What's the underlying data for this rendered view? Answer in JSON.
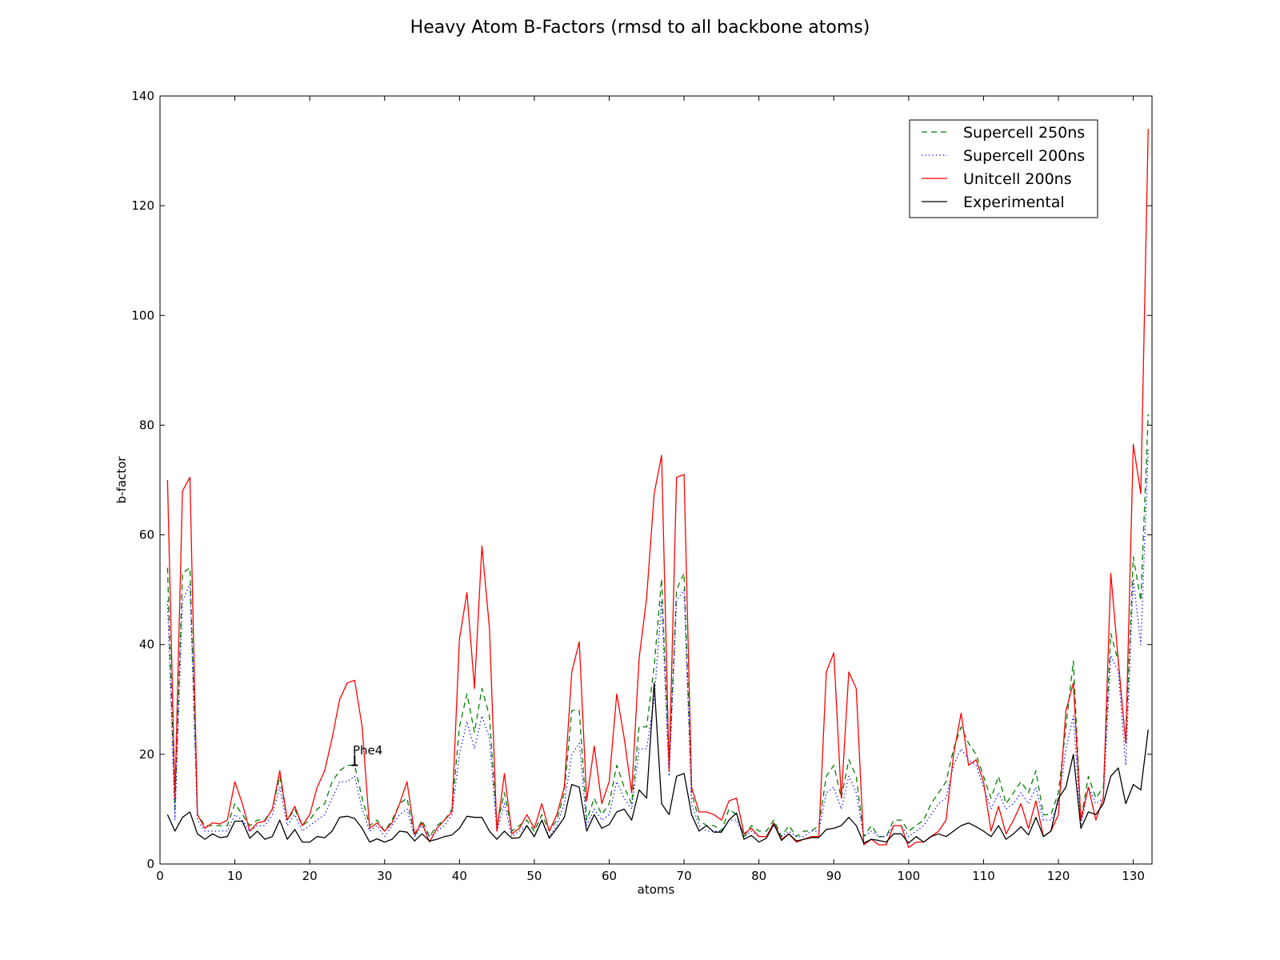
{
  "chart_data": {
    "type": "line",
    "title": "Heavy Atom B-Factors (rmsd to all backbone atoms)",
    "xlabel": "atoms",
    "ylabel": "b-factor",
    "xlim": [
      0,
      132.5
    ],
    "ylim": [
      0,
      140
    ],
    "xticks": [
      0,
      10,
      20,
      30,
      40,
      50,
      60,
      70,
      80,
      90,
      100,
      110,
      120,
      130
    ],
    "yticks": [
      0,
      20,
      40,
      60,
      80,
      100,
      120,
      140
    ],
    "grid": false,
    "legend_position": "upper right",
    "annotation": {
      "text": "Phe4",
      "x": 26,
      "y": 18
    },
    "series": [
      {
        "name": "Supercell 250ns",
        "color": "#007f00",
        "style": "dashed",
        "x": [
          1,
          2,
          3,
          4,
          5,
          6,
          7,
          8,
          9,
          10,
          11,
          12,
          13,
          14,
          15,
          16,
          17,
          18,
          19,
          20,
          21,
          22,
          23,
          24,
          25,
          26,
          27,
          28,
          29,
          30,
          31,
          32,
          33,
          34,
          35,
          36,
          37,
          38,
          39,
          40,
          41,
          42,
          43,
          44,
          45,
          46,
          47,
          48,
          49,
          50,
          51,
          52,
          53,
          54,
          55,
          56,
          57,
          58,
          59,
          60,
          61,
          62,
          63,
          64,
          65,
          66,
          67,
          68,
          69,
          70,
          71,
          72,
          73,
          74,
          75,
          76,
          77,
          78,
          79,
          80,
          81,
          82,
          83,
          84,
          85,
          86,
          87,
          88,
          89,
          90,
          91,
          92,
          93,
          94,
          95,
          96,
          97,
          98,
          99,
          100,
          101,
          102,
          103,
          104,
          105,
          106,
          107,
          108,
          109,
          110,
          111,
          112,
          113,
          114,
          115,
          116,
          117,
          118,
          119,
          120,
          121,
          122,
          123,
          124,
          125,
          126,
          127,
          128,
          129,
          130,
          131,
          132
        ],
        "values": [
          54,
          10,
          53,
          54,
          9,
          7,
          7,
          7,
          7,
          11,
          9,
          7,
          8,
          8,
          10,
          16,
          8,
          10,
          7,
          8,
          10,
          11,
          15,
          17,
          18,
          18,
          12,
          7,
          8,
          6,
          8,
          11,
          12,
          5,
          8,
          5,
          7,
          8,
          10,
          25,
          31,
          24,
          32,
          27,
          7,
          13,
          6,
          7,
          8,
          6,
          9,
          6,
          8,
          13,
          28,
          28,
          8,
          12,
          9,
          11,
          18,
          14,
          11,
          25,
          25,
          36,
          52,
          17,
          50,
          53,
          13,
          8,
          7,
          7,
          6,
          10,
          9,
          5,
          7,
          6,
          6,
          8,
          5,
          7,
          5,
          6,
          6,
          7,
          16,
          18,
          12,
          19,
          16,
          5,
          7,
          5,
          5,
          8,
          8,
          6,
          7,
          8,
          11,
          13,
          15,
          21,
          25,
          22,
          20,
          16,
          12,
          16,
          11,
          13,
          15,
          13,
          17,
          9,
          9,
          13,
          25,
          37,
          8,
          16,
          12,
          14,
          42,
          37,
          22,
          56,
          48,
          82
        ]
      },
      {
        "name": "Supercell 200ns",
        "color": "#0000ff",
        "style": "dotted",
        "x": [
          1,
          2,
          3,
          4,
          5,
          6,
          7,
          8,
          9,
          10,
          11,
          12,
          13,
          14,
          15,
          16,
          17,
          18,
          19,
          20,
          21,
          22,
          23,
          24,
          25,
          26,
          27,
          28,
          29,
          30,
          31,
          32,
          33,
          34,
          35,
          36,
          37,
          38,
          39,
          40,
          41,
          42,
          43,
          44,
          45,
          46,
          47,
          48,
          49,
          50,
          51,
          52,
          53,
          54,
          55,
          56,
          57,
          58,
          59,
          60,
          61,
          62,
          63,
          64,
          65,
          66,
          67,
          68,
          69,
          70,
          71,
          72,
          73,
          74,
          75,
          76,
          77,
          78,
          79,
          80,
          81,
          82,
          83,
          84,
          85,
          86,
          87,
          88,
          89,
          90,
          91,
          92,
          93,
          94,
          95,
          96,
          97,
          98,
          99,
          100,
          101,
          102,
          103,
          104,
          105,
          106,
          107,
          108,
          109,
          110,
          111,
          112,
          113,
          114,
          115,
          116,
          117,
          118,
          119,
          120,
          121,
          122,
          123,
          124,
          125,
          126,
          127,
          128,
          129,
          130,
          131,
          132
        ],
        "values": [
          48,
          8,
          48,
          51,
          8,
          6,
          6,
          6,
          6,
          9,
          8,
          6,
          7,
          7,
          9,
          14,
          7,
          9,
          6,
          7,
          8,
          9,
          12,
          15,
          15,
          16,
          10,
          6,
          7,
          5,
          7,
          9,
          10,
          5,
          7,
          5,
          6,
          7,
          9,
          20,
          26,
          21,
          27,
          23,
          6,
          11,
          5,
          6,
          7,
          5,
          8,
          5,
          7,
          11,
          20,
          22,
          7,
          10,
          8,
          9,
          15,
          12,
          10,
          21,
          21,
          30,
          48,
          16,
          48,
          50,
          11,
          7,
          6,
          6,
          6,
          8,
          8,
          5,
          6,
          5,
          5,
          7,
          5,
          6,
          5,
          5,
          6,
          6,
          13,
          14,
          10,
          16,
          13,
          5,
          6,
          5,
          5,
          7,
          7,
          5,
          6,
          7,
          9,
          11,
          12,
          18,
          21,
          19,
          18,
          14,
          10,
          13,
          10,
          11,
          13,
          11,
          14,
          8,
          8,
          11,
          21,
          27,
          7,
          14,
          11,
          12,
          38,
          35,
          18,
          52,
          40,
          76
        ]
      },
      {
        "name": "Unitcell 200ns",
        "color": "#ff0000",
        "style": "solid",
        "x": [
          1,
          2,
          3,
          4,
          5,
          6,
          7,
          8,
          9,
          10,
          11,
          12,
          13,
          14,
          15,
          16,
          17,
          18,
          19,
          20,
          21,
          22,
          23,
          24,
          25,
          26,
          27,
          28,
          29,
          30,
          31,
          32,
          33,
          34,
          35,
          36,
          37,
          38,
          39,
          40,
          41,
          42,
          43,
          44,
          45,
          46,
          47,
          48,
          49,
          50,
          51,
          52,
          53,
          54,
          55,
          56,
          57,
          58,
          59,
          60,
          61,
          62,
          63,
          64,
          65,
          66,
          67,
          68,
          69,
          70,
          71,
          72,
          73,
          74,
          75,
          76,
          77,
          78,
          79,
          80,
          81,
          82,
          83,
          84,
          85,
          86,
          87,
          88,
          89,
          90,
          91,
          92,
          93,
          94,
          95,
          96,
          97,
          98,
          99,
          100,
          101,
          102,
          103,
          104,
          105,
          106,
          107,
          108,
          109,
          110,
          111,
          112,
          113,
          114,
          115,
          116,
          117,
          118,
          119,
          120,
          121,
          122,
          123,
          124,
          125,
          126,
          127,
          128,
          129,
          130,
          131,
          132
        ],
        "values": [
          70,
          12,
          68,
          70.5,
          9,
          6.5,
          7.5,
          7.3,
          8,
          15,
          11,
          6,
          7.5,
          7.8,
          10,
          17,
          8,
          10.5,
          7,
          9,
          14,
          17,
          23,
          30,
          33,
          33.5,
          25,
          6.5,
          7.5,
          6,
          7.5,
          11,
          15,
          5.5,
          7.5,
          4,
          6.5,
          8,
          9.5,
          41,
          49.5,
          32,
          58,
          43,
          6,
          16.5,
          5.5,
          6.5,
          9,
          6.5,
          11,
          6,
          9,
          14,
          35,
          40.5,
          11.5,
          21.5,
          11,
          15,
          31,
          23,
          13,
          37.5,
          48.5,
          67.5,
          74.5,
          17,
          70.5,
          71,
          14,
          9.5,
          9.5,
          9,
          8,
          11.5,
          12,
          5.5,
          6.5,
          5,
          5,
          7.5,
          4.5,
          5.5,
          4,
          4.5,
          5,
          5,
          35,
          38.5,
          12,
          35,
          32,
          3.5,
          4.5,
          3.5,
          3.5,
          7,
          7,
          3,
          4,
          4,
          5,
          6,
          8,
          20,
          27.5,
          18,
          19,
          15,
          6,
          10.5,
          5.5,
          8,
          11,
          6.5,
          11.5,
          5,
          6,
          9,
          28,
          33,
          8,
          14,
          8,
          12,
          53,
          37,
          22,
          76.5,
          67.5,
          134
        ]
      },
      {
        "name": "Experimental",
        "color": "#000000",
        "style": "solid",
        "x": [
          1,
          2,
          3,
          4,
          5,
          6,
          7,
          8,
          9,
          10,
          11,
          12,
          13,
          14,
          15,
          16,
          17,
          18,
          19,
          20,
          21,
          22,
          23,
          24,
          25,
          26,
          27,
          28,
          29,
          30,
          31,
          32,
          33,
          34,
          35,
          36,
          37,
          38,
          39,
          40,
          41,
          42,
          43,
          44,
          45,
          46,
          47,
          48,
          49,
          50,
          51,
          52,
          53,
          54,
          55,
          56,
          57,
          58,
          59,
          60,
          61,
          62,
          63,
          64,
          65,
          66,
          67,
          68,
          69,
          70,
          71,
          72,
          73,
          74,
          75,
          76,
          77,
          78,
          79,
          80,
          81,
          82,
          83,
          84,
          85,
          86,
          87,
          88,
          89,
          90,
          91,
          92,
          93,
          94,
          95,
          96,
          97,
          98,
          99,
          100,
          101,
          102,
          103,
          104,
          105,
          106,
          107,
          108,
          109,
          110,
          111,
          112,
          113,
          114,
          115,
          116,
          117,
          118,
          119,
          120,
          121,
          122,
          123,
          124,
          125,
          126,
          127,
          128,
          129,
          130,
          131,
          132
        ],
        "values": [
          9,
          6,
          8.5,
          9.5,
          5.5,
          4.5,
          5.5,
          4.8,
          5,
          7.8,
          7.8,
          4.7,
          6,
          4.5,
          5,
          8,
          4.5,
          6.3,
          4,
          4,
          5,
          4.8,
          6,
          8.5,
          8.7,
          8.3,
          6.5,
          4,
          4.6,
          4,
          4.5,
          6,
          5.8,
          4.2,
          5.5,
          4.2,
          4.5,
          5,
          5.3,
          6.5,
          8.7,
          8.5,
          8.5,
          6,
          4.5,
          6,
          4.7,
          4.8,
          7,
          5,
          8,
          4.7,
          6.5,
          8.5,
          14.5,
          14,
          6,
          9,
          6.5,
          7.2,
          9.5,
          10,
          8,
          13.5,
          12,
          33,
          11,
          9,
          16,
          16.5,
          9,
          6,
          7,
          5.8,
          5.8,
          8,
          9.3,
          4.5,
          5.2,
          4,
          4.7,
          7.3,
          4.3,
          5.5,
          4.2,
          4.5,
          4.8,
          4.8,
          6.3,
          6.5,
          7,
          8.5,
          7,
          3.8,
          4.5,
          4.3,
          4,
          5.5,
          5.5,
          3.8,
          5,
          4,
          5,
          5.5,
          5,
          6,
          7,
          7.5,
          6.8,
          6,
          5,
          7,
          4.5,
          5.5,
          6.8,
          5.3,
          8.5,
          5,
          6,
          12,
          14,
          20,
          6.5,
          9.5,
          9,
          11,
          16,
          17.5,
          11,
          14.5,
          13.5,
          24.5
        ]
      }
    ]
  }
}
